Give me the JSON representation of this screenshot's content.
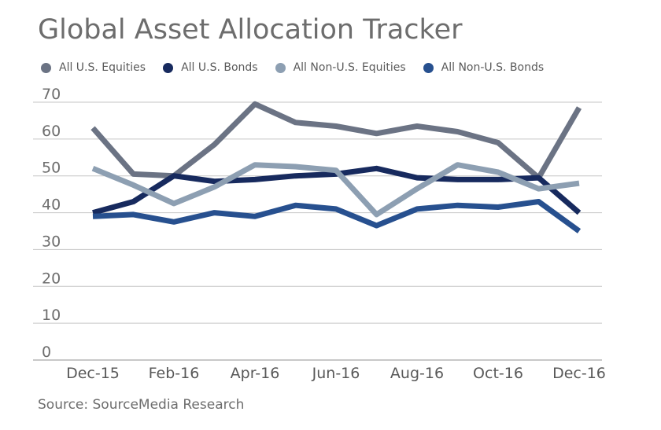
{
  "chart_data": {
    "type": "line",
    "title": "Global Asset Allocation Tracker",
    "source": "Source: SourceMedia Research",
    "xlabel": "",
    "ylabel": "",
    "ylim": [
      0,
      70
    ],
    "yticks": [
      "0",
      "10",
      "20",
      "30",
      "40",
      "50",
      "60",
      "70"
    ],
    "grid": true,
    "legend_position": "top-left",
    "categories": [
      "Dec-15",
      "Jan-16",
      "Feb-16",
      "Mar-16",
      "Apr-16",
      "May-16",
      "Jun-16",
      "Jul-16",
      "Aug-16",
      "Sep-16",
      "Oct-16",
      "Nov-16",
      "Dec-16"
    ],
    "xtick_labels": [
      "Dec-15",
      "Feb-16",
      "Apr-16",
      "Jun-16",
      "Aug-16",
      "Oct-16",
      "Dec-16"
    ],
    "series": [
      {
        "name": "All U.S. Equities",
        "color": "#6b7384",
        "values": [
          63,
          50.5,
          50,
          58.5,
          69.5,
          64.5,
          63.5,
          61.5,
          63.5,
          62,
          59,
          49.5,
          68.5
        ]
      },
      {
        "name": "All U.S. Bonds",
        "color": "#172a5e",
        "values": [
          40,
          43,
          50,
          48.5,
          49,
          50,
          50.5,
          52,
          49.5,
          49,
          49,
          49.5,
          40
        ]
      },
      {
        "name": "All Non-U.S. Equities",
        "color": "#8d9fb2",
        "values": [
          52,
          47.5,
          42.5,
          47,
          53,
          52.5,
          51.5,
          39.5,
          46.5,
          53,
          51,
          46.5,
          48
        ]
      },
      {
        "name": "All Non-U.S. Bonds",
        "color": "#27508f",
        "values": [
          39,
          39.5,
          37.5,
          40,
          39,
          42,
          41,
          36.5,
          41,
          42,
          41.5,
          43,
          35
        ]
      }
    ]
  }
}
